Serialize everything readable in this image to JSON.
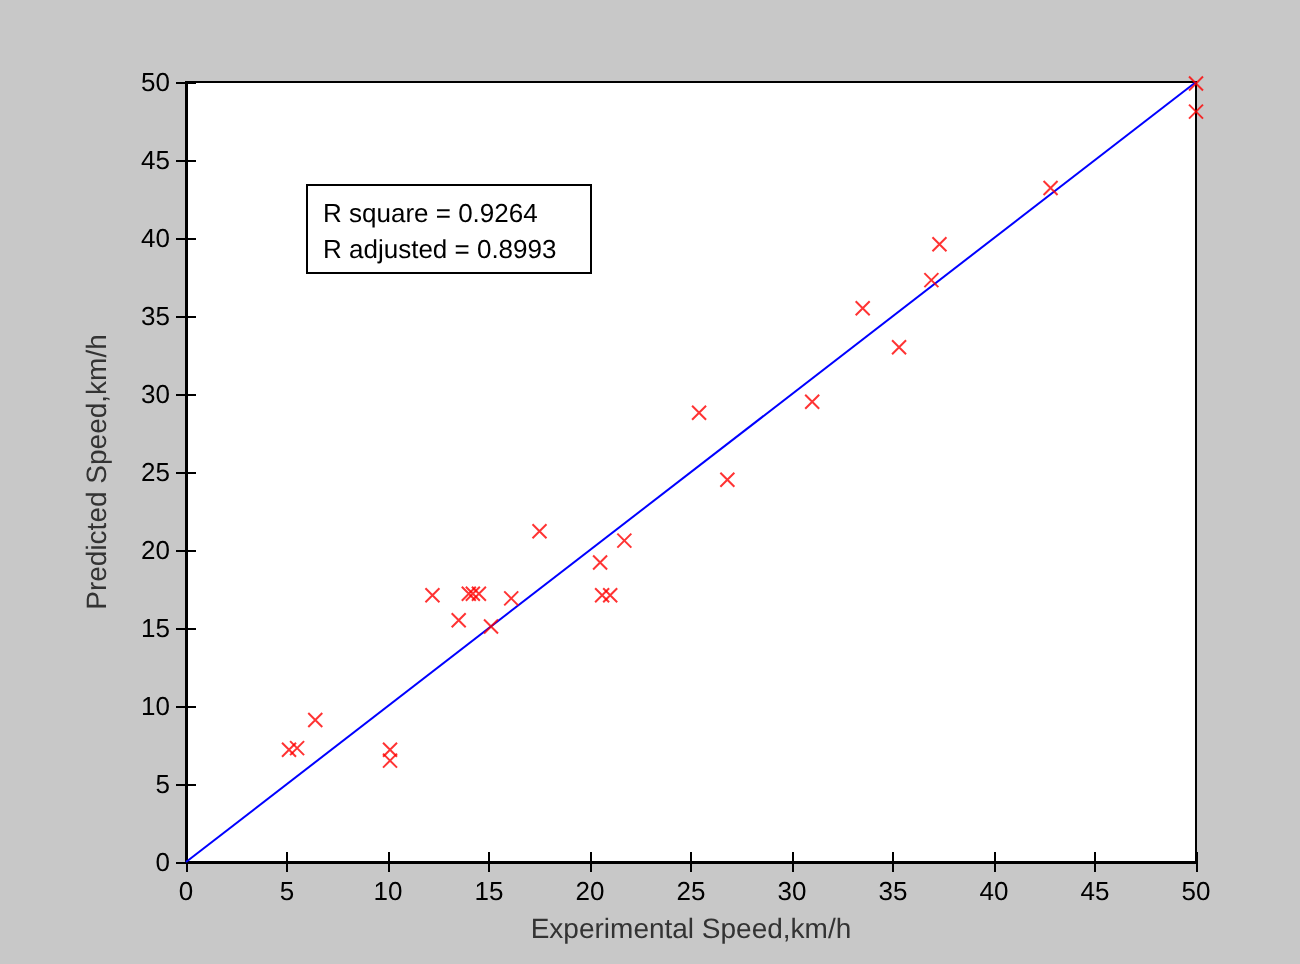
{
  "chart_data": {
    "type": "scatter",
    "xlabel": "Experimental Speed,km/h",
    "ylabel": "Predicted Speed,km/h",
    "annotations": [
      "R square = 0.9264",
      "R adjusted = 0.8993"
    ],
    "xlim": [
      0,
      50
    ],
    "xticks": [
      0,
      5,
      10,
      15,
      20,
      25,
      30,
      35,
      40,
      45,
      50
    ],
    "ylim": [
      0,
      50
    ],
    "yticks": [
      0,
      5,
      10,
      15,
      20,
      25,
      30,
      35,
      40,
      45,
      50
    ],
    "grid": false,
    "marker": "cross",
    "series": [
      {
        "color": "#ff0000",
        "x": [
          5.1,
          5.5,
          6.4,
          10.1,
          10.1,
          12.2,
          13.5,
          14.0,
          14.2,
          14.5,
          15.1,
          16.1,
          17.5,
          20.5,
          20.6,
          21.0,
          21.7,
          25.4,
          26.8,
          31.0,
          33.5,
          35.3,
          36.9,
          37.3,
          42.8,
          50,
          50
        ],
        "values": [
          7.2,
          7.3,
          9.1,
          6.5,
          7.2,
          17.1,
          15.5,
          17.2,
          17.2,
          17.2,
          15.1,
          16.9,
          21.2,
          19.2,
          17.1,
          17.1,
          20.6,
          28.8,
          24.5,
          29.5,
          35.5,
          33.0,
          37.3,
          39.6,
          43.2,
          48.1,
          49.9
        ]
      },
      {
        "type": "line",
        "color": "#0000ff",
        "x": [
          0,
          50
        ],
        "values": [
          0,
          50
        ],
        "marker": "none"
      }
    ]
  }
}
